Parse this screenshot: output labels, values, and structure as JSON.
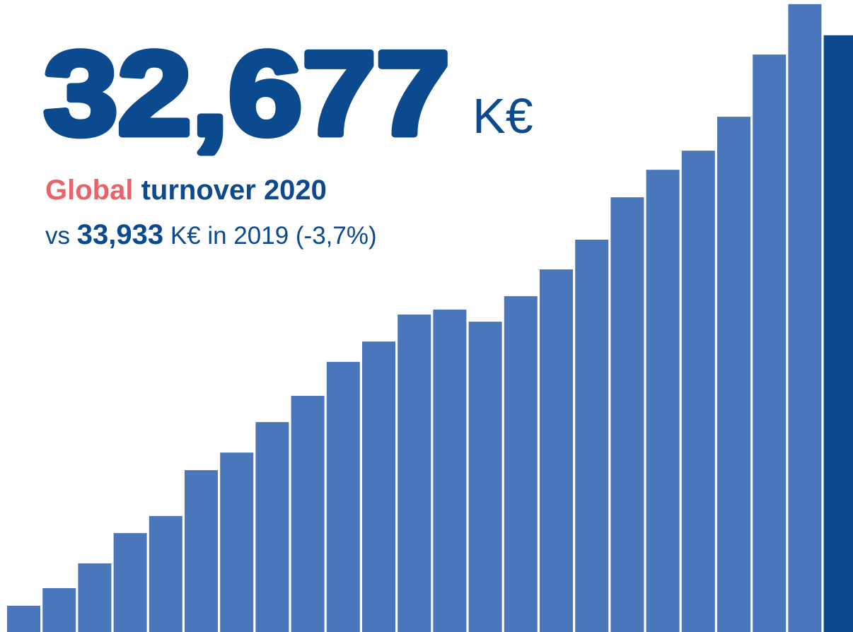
{
  "chart_data": {
    "type": "bar",
    "headline_value": "32,677",
    "headline_unit": "K€",
    "subtitle_highlight": "Global",
    "subtitle_rest": "turnover 2020",
    "comparison_prefix": "vs",
    "comparison_value": "33,933",
    "comparison_suffix": "K€ in 2019 (-3,7%)",
    "values": [
      9660,
      10370,
      11370,
      12590,
      13280,
      15130,
      15840,
      17070,
      18130,
      19500,
      20320,
      21410,
      21610,
      21120,
      22150,
      23230,
      24430,
      26140,
      27250,
      28020,
      29390,
      31900,
      33933,
      32677
    ],
    "colors": [
      "#4a76bb",
      "#4a76bb",
      "#4a76bb",
      "#4a76bb",
      "#4a76bb",
      "#4a76bb",
      "#4a76bb",
      "#4a76bb",
      "#4a76bb",
      "#4a76bb",
      "#4a76bb",
      "#4a76bb",
      "#4a76bb",
      "#4a76bb",
      "#4a76bb",
      "#4a76bb",
      "#4a76bb",
      "#4a76bb",
      "#4a76bb",
      "#4a76bb",
      "#4a76bb",
      "#4a76bb",
      "#4a76bb",
      "#0b4a8f"
    ],
    "ylim": [
      8600,
      34100
    ]
  }
}
